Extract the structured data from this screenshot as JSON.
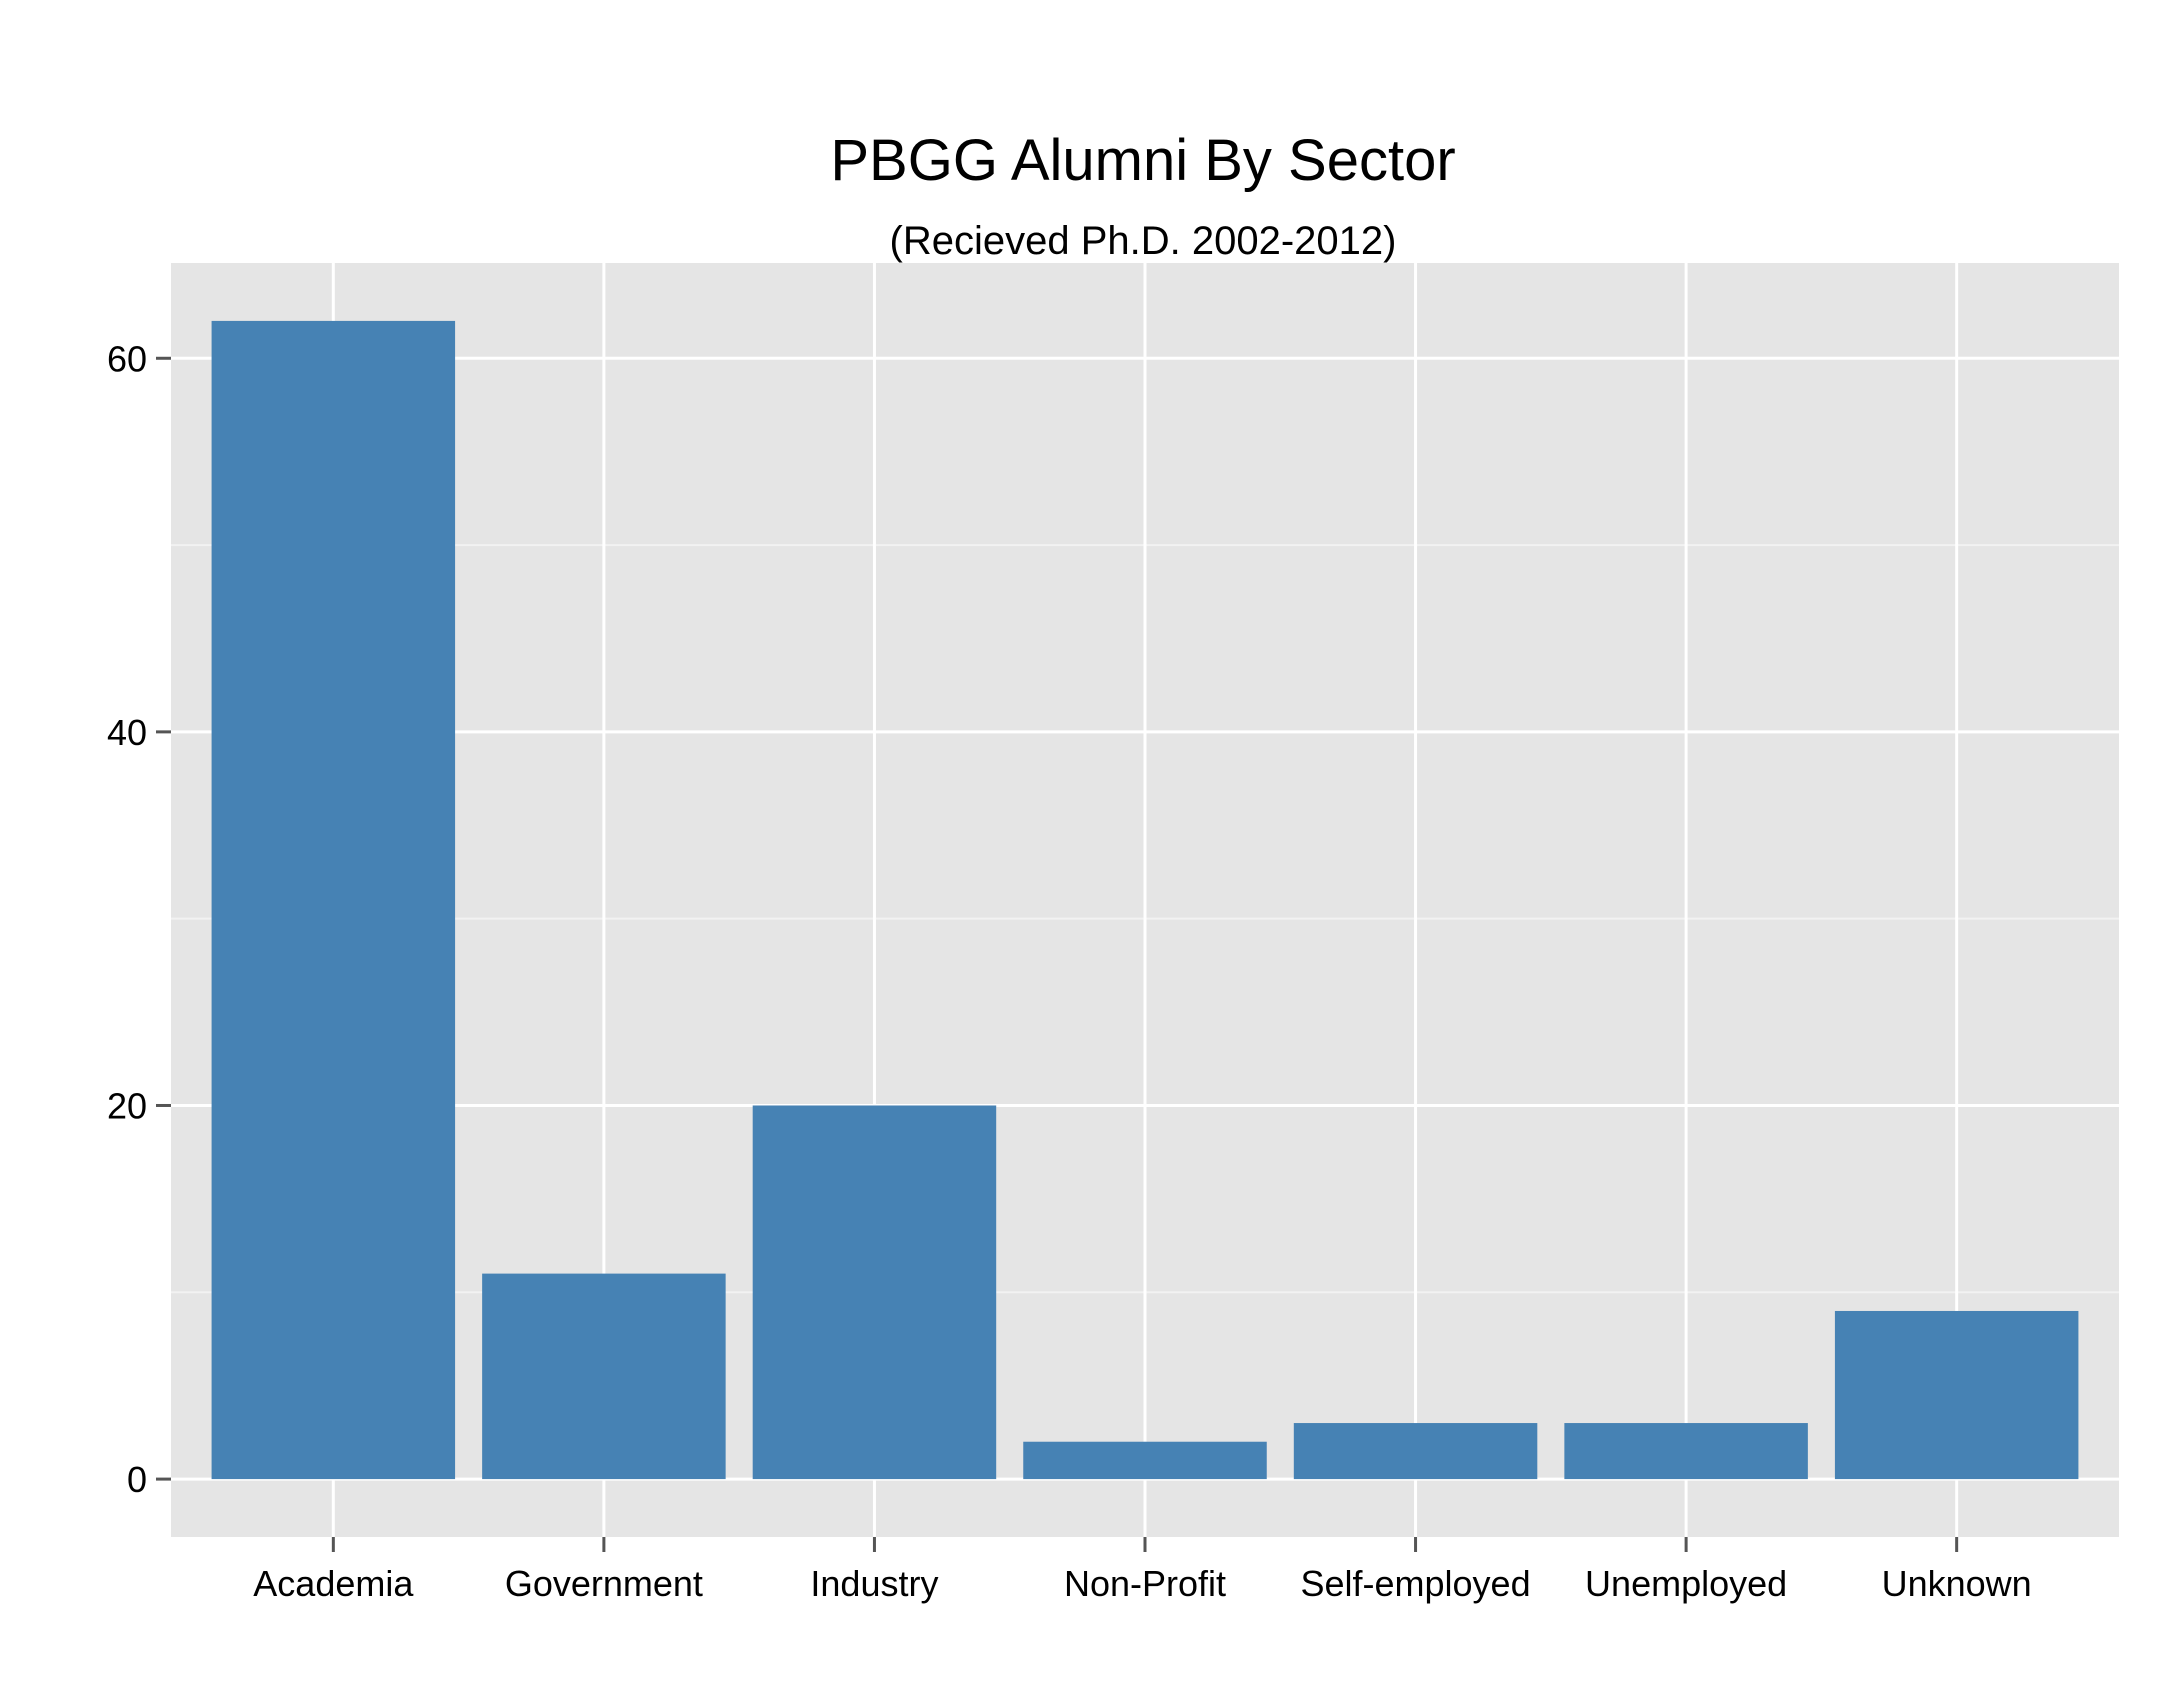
{
  "chart_data": {
    "type": "bar",
    "title": "PBGG Alumni By Sector",
    "subtitle": "(Recieved Ph.D. 2002-2012)",
    "xlabel": "",
    "ylabel": "",
    "categories": [
      "Academia",
      "Government",
      "Industry",
      "Non-Profit",
      "Self-employed",
      "Unemployed",
      "Unknown"
    ],
    "values": [
      62,
      11,
      20,
      2,
      3,
      3,
      9
    ],
    "yticks": [
      0,
      20,
      40,
      60
    ],
    "ylim": [
      -3.1,
      65.1
    ],
    "grid": true,
    "legend": "none",
    "colors": {
      "bar": "#4682b4",
      "panel": "#e5e5e5",
      "grid_major": "#ffffff",
      "grid_minor": "#f2f2f2",
      "tick": "#555555"
    }
  }
}
